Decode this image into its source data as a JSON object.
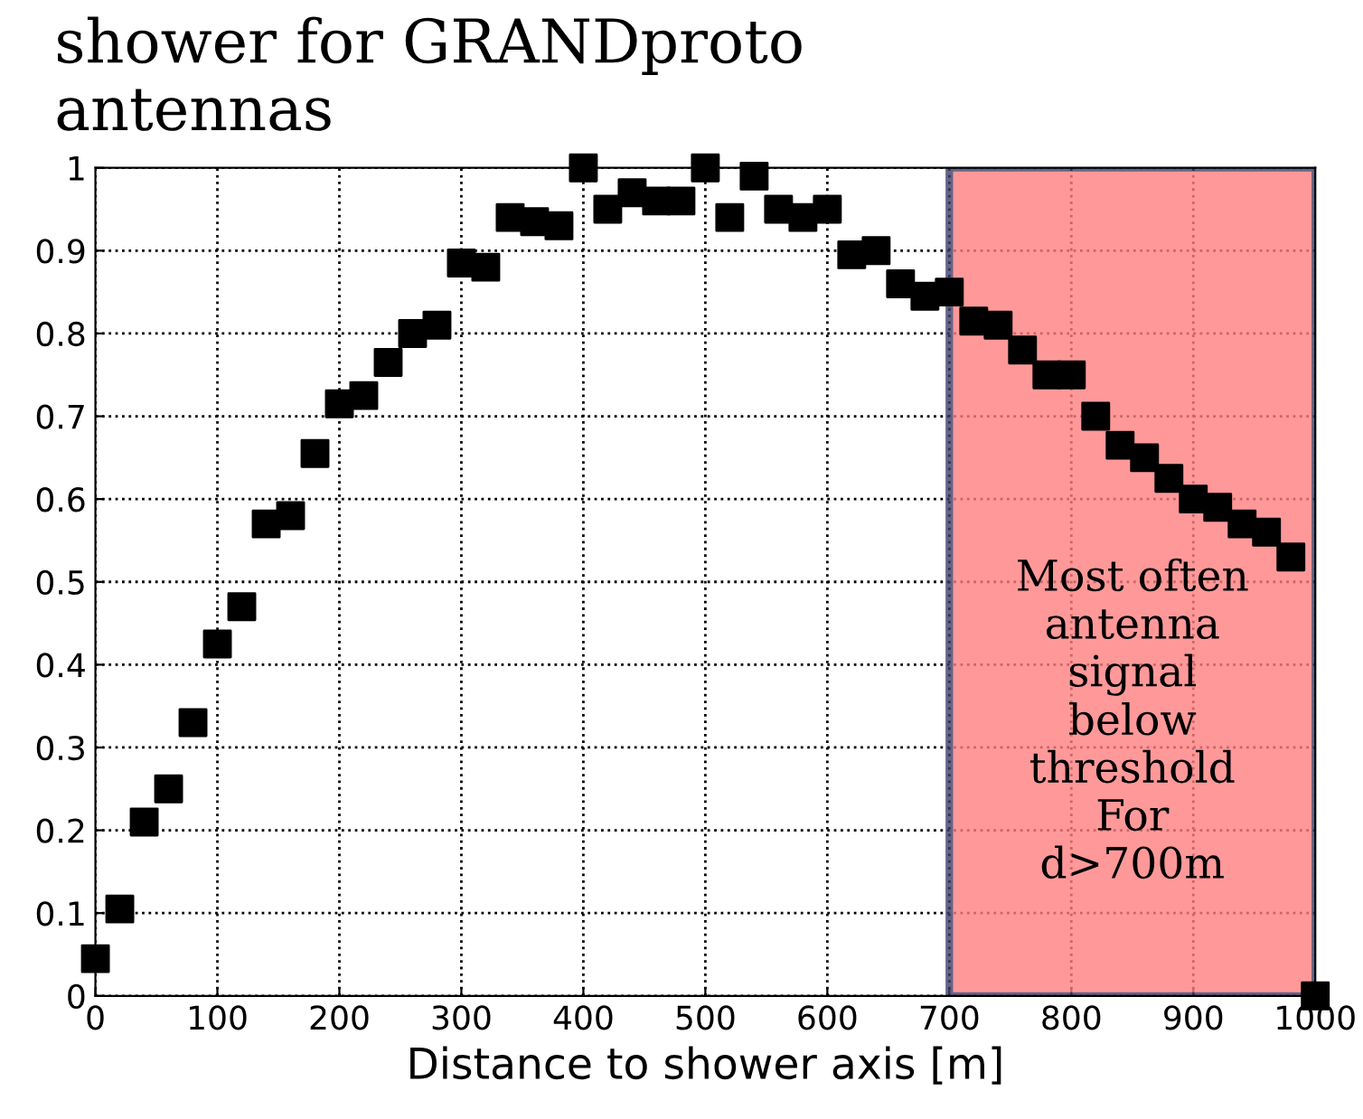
{
  "chart_data": {
    "type": "scatter",
    "title": "shower for GRANDproto\nantennas",
    "xlabel": "Distance to shower axis [m]",
    "x": [
      0,
      20,
      40,
      60,
      80,
      100,
      120,
      140,
      160,
      180,
      200,
      220,
      240,
      260,
      280,
      300,
      320,
      340,
      360,
      380,
      400,
      420,
      440,
      460,
      480,
      500,
      520,
      540,
      560,
      580,
      600,
      620,
      640,
      660,
      680,
      700,
      720,
      740,
      760,
      780,
      800,
      820,
      840,
      860,
      880,
      900,
      920,
      940,
      960,
      980,
      1000
    ],
    "values": [
      0.045,
      0.105,
      0.21,
      0.25,
      0.33,
      0.425,
      0.47,
      0.57,
      0.58,
      0.655,
      0.715,
      0.725,
      0.765,
      0.8,
      0.81,
      0.885,
      0.88,
      0.94,
      0.935,
      0.93,
      1.0,
      0.95,
      0.97,
      0.96,
      0.96,
      1.0,
      0.94,
      0.99,
      0.95,
      0.94,
      0.95,
      0.895,
      0.9,
      0.86,
      0.845,
      0.85,
      0.815,
      0.81,
      0.78,
      0.75,
      0.75,
      0.7,
      0.665,
      0.65,
      0.625,
      0.6,
      0.59,
      0.57,
      0.56,
      0.53,
      0.0
    ],
    "color": "#000000",
    "marker": "square",
    "xlim": [
      0,
      1000
    ],
    "ylim": [
      0,
      1
    ],
    "xticks": [
      0,
      100,
      200,
      300,
      400,
      500,
      600,
      700,
      800,
      900,
      1000
    ],
    "yticks": [
      0,
      0.1,
      0.2,
      0.3,
      0.4,
      0.5,
      0.6,
      0.7,
      0.8,
      0.9,
      1
    ],
    "grid": true,
    "bands": [
      {
        "axis": "x",
        "from": 700,
        "to": 1000,
        "label": "Most often\nantenna\nsignal\nbelow\nthreshold\nFor\nd>700m",
        "color": "#ff8080"
      }
    ]
  }
}
